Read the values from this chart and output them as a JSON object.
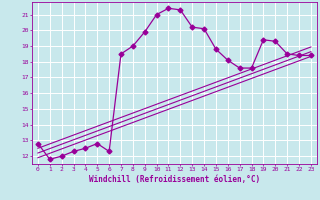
{
  "x_values": [
    0,
    1,
    2,
    3,
    4,
    5,
    6,
    7,
    8,
    9,
    10,
    11,
    12,
    13,
    14,
    15,
    16,
    17,
    18,
    19,
    20,
    21,
    22,
    23
  ],
  "y_curve": [
    12.8,
    11.8,
    12.0,
    12.3,
    12.5,
    12.8,
    12.3,
    18.5,
    19.0,
    19.9,
    21.0,
    21.4,
    21.3,
    20.2,
    20.1,
    18.8,
    18.1,
    17.6,
    17.6,
    19.4,
    19.3,
    18.5,
    18.4,
    18.4
  ],
  "y_line1": [
    12.5,
    12.78,
    13.06,
    13.34,
    13.62,
    13.9,
    14.18,
    14.46,
    14.74,
    15.02,
    15.3,
    15.58,
    15.86,
    16.14,
    16.42,
    16.7,
    16.98,
    17.26,
    17.54,
    17.82,
    18.1,
    18.38,
    18.66,
    18.94
  ],
  "y_line2": [
    12.2,
    12.48,
    12.76,
    13.04,
    13.32,
    13.6,
    13.88,
    14.16,
    14.44,
    14.72,
    15.0,
    15.28,
    15.56,
    15.84,
    16.12,
    16.4,
    16.68,
    16.96,
    17.24,
    17.52,
    17.8,
    18.08,
    18.36,
    18.64
  ],
  "y_line3": [
    11.9,
    12.18,
    12.46,
    12.74,
    13.02,
    13.3,
    13.58,
    13.86,
    14.14,
    14.42,
    14.7,
    14.98,
    15.26,
    15.54,
    15.82,
    16.1,
    16.38,
    16.66,
    16.94,
    17.22,
    17.5,
    17.78,
    18.06,
    18.34
  ],
  "line_color": "#990099",
  "bg_color": "#c8e8ec",
  "grid_color": "#ffffff",
  "xlabel": "Windchill (Refroidissement éolien,°C)",
  "ylim_min": 11.5,
  "ylim_max": 21.8,
  "xlim_min": -0.5,
  "xlim_max": 23.5,
  "yticks": [
    12,
    13,
    14,
    15,
    16,
    17,
    18,
    19,
    20,
    21
  ],
  "xticks": [
    0,
    1,
    2,
    3,
    4,
    5,
    6,
    7,
    8,
    9,
    10,
    11,
    12,
    13,
    14,
    15,
    16,
    17,
    18,
    19,
    20,
    21,
    22,
    23
  ]
}
